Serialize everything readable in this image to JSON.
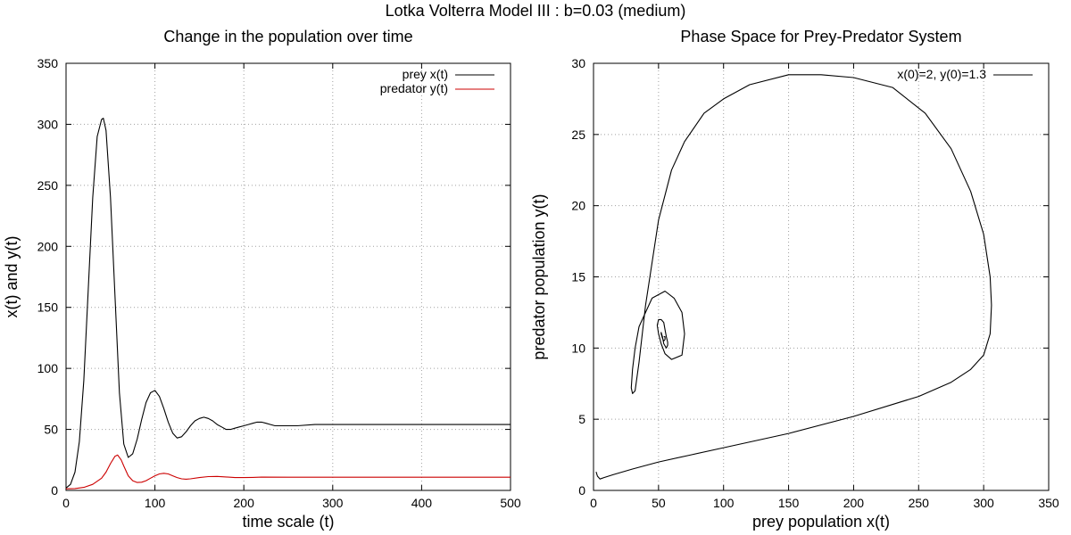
{
  "figure": {
    "suptitle": "Lotka Volterra Model III : b=0.03 (medium)"
  },
  "chart_data": [
    {
      "type": "line",
      "title": "Change in the population over time",
      "xlabel": "time scale (t)",
      "ylabel": "x(t) and y(t)",
      "xlim": [
        0,
        500
      ],
      "ylim": [
        0,
        350
      ],
      "xticks": [
        0,
        100,
        200,
        300,
        400,
        500
      ],
      "yticks": [
        0,
        50,
        100,
        150,
        200,
        250,
        300,
        350
      ],
      "grid": true,
      "legend_position": "top-right",
      "series": [
        {
          "name": "prey x(t)",
          "color": "#000000",
          "x": [
            0,
            5,
            10,
            15,
            20,
            25,
            30,
            35,
            40,
            42,
            45,
            50,
            55,
            60,
            65,
            70,
            75,
            80,
            85,
            90,
            95,
            100,
            105,
            110,
            115,
            120,
            125,
            130,
            135,
            140,
            145,
            150,
            155,
            160,
            165,
            170,
            175,
            180,
            185,
            190,
            195,
            200,
            205,
            210,
            215,
            220,
            225,
            230,
            235,
            240,
            250,
            260,
            280,
            300,
            350,
            400,
            450,
            500
          ],
          "y": [
            2,
            5,
            15,
            40,
            90,
            165,
            240,
            290,
            304,
            305,
            295,
            240,
            160,
            80,
            38,
            27,
            30,
            42,
            58,
            72,
            80,
            82,
            77,
            67,
            56,
            47,
            43,
            44,
            48,
            53,
            57,
            59,
            60,
            59,
            57,
            54,
            52,
            50,
            50,
            51,
            52,
            53,
            54,
            55,
            56,
            56,
            55,
            54,
            53,
            53,
            53,
            53,
            54,
            54,
            54,
            54,
            54,
            54
          ]
        },
        {
          "name": "predator y(t)",
          "color": "#cc0000",
          "x": [
            0,
            10,
            20,
            30,
            40,
            45,
            50,
            55,
            58,
            62,
            65,
            70,
            75,
            80,
            85,
            90,
            95,
            100,
            105,
            110,
            115,
            120,
            125,
            130,
            135,
            140,
            150,
            160,
            170,
            180,
            190,
            200,
            210,
            220,
            250,
            300,
            350,
            400,
            450,
            500
          ],
          "y": [
            1.3,
            1.5,
            2.5,
            5,
            10,
            15,
            22,
            28,
            29,
            25,
            20,
            12,
            8,
            6.5,
            6.7,
            8,
            10,
            12,
            13.5,
            14,
            13.5,
            12,
            10.5,
            9.5,
            9.2,
            9.5,
            10.5,
            11.3,
            11.5,
            11,
            10.5,
            10.5,
            10.7,
            10.9,
            10.8,
            10.8,
            10.8,
            10.8,
            10.8,
            10.8
          ]
        }
      ]
    },
    {
      "type": "line",
      "title": "Phase Space for Prey-Predator System",
      "xlabel": "prey population x(t)",
      "ylabel": "predator population y(t)",
      "xlim": [
        0,
        350
      ],
      "ylim": [
        0,
        30
      ],
      "xticks": [
        0,
        50,
        100,
        150,
        200,
        250,
        300,
        350
      ],
      "yticks": [
        0,
        5,
        10,
        15,
        20,
        25,
        30
      ],
      "grid": true,
      "legend_position": "top-right",
      "series": [
        {
          "name": "x(0)=2, y(0)=1.3",
          "color": "#000000",
          "x": [
            2,
            3,
            5,
            8,
            15,
            30,
            50,
            75,
            100,
            150,
            200,
            250,
            275,
            290,
            300,
            305,
            306,
            305,
            300,
            290,
            275,
            255,
            230,
            200,
            175,
            150,
            120,
            100,
            85,
            70,
            60,
            50,
            40,
            35,
            32,
            30,
            29,
            30,
            32,
            35,
            45,
            55,
            62,
            68,
            70,
            68,
            60,
            55,
            52,
            50,
            49,
            50,
            52,
            54,
            55,
            56,
            57,
            57,
            56,
            54,
            53,
            52,
            52,
            53,
            54,
            55,
            55,
            54,
            54
          ],
          "y": [
            1.3,
            1,
            0.8,
            0.9,
            1.1,
            1.5,
            2,
            2.5,
            3,
            4,
            5.2,
            6.6,
            7.6,
            8.5,
            9.5,
            11,
            13,
            15,
            18,
            21,
            24,
            26.5,
            28.3,
            29,
            29.2,
            29.2,
            28.5,
            27.5,
            26.5,
            24.5,
            22.5,
            19,
            13,
            9,
            7,
            6.8,
            7.2,
            8.5,
            10,
            11.5,
            13.5,
            14,
            13.5,
            12.5,
            11,
            9.5,
            9.2,
            9.6,
            10.3,
            11,
            11.6,
            12,
            12,
            11.8,
            11.3,
            10.8,
            10.4,
            10.2,
            10,
            10.3,
            10.8,
            11.1,
            11,
            10.7,
            10.5,
            10.6,
            10.8,
            10.8,
            10.8
          ]
        }
      ]
    }
  ]
}
